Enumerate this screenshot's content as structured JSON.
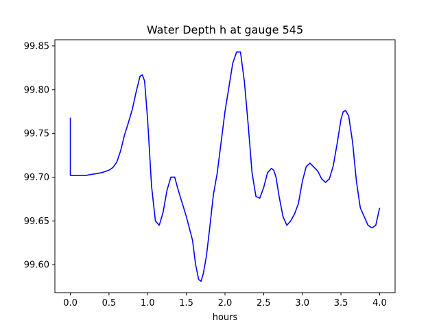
{
  "chart_data": {
    "type": "line",
    "title": "Water Depth h at gauge 545",
    "xlabel": "hours",
    "ylabel": "",
    "xlim": [
      -0.2,
      4.2
    ],
    "ylim": [
      99.568,
      99.857
    ],
    "xticks": [
      0.0,
      0.5,
      1.0,
      1.5,
      2.0,
      2.5,
      3.0,
      3.5,
      4.0
    ],
    "xtick_labels": [
      "0.0",
      "0.5",
      "1.0",
      "1.5",
      "2.0",
      "2.5",
      "3.0",
      "3.5",
      "4.0"
    ],
    "yticks": [
      99.6,
      99.65,
      99.7,
      99.75,
      99.8,
      99.85
    ],
    "ytick_labels": [
      "99.60",
      "99.65",
      "99.70",
      "99.75",
      "99.80",
      "99.85"
    ],
    "grid": false,
    "series": [
      {
        "color": "#0000ff",
        "x": [
          0.0,
          0.0,
          0.05,
          0.2,
          0.4,
          0.5,
          0.55,
          0.6,
          0.65,
          0.7,
          0.75,
          0.8,
          0.85,
          0.9,
          0.93,
          0.96,
          1.0,
          1.05,
          1.1,
          1.15,
          1.2,
          1.25,
          1.3,
          1.35,
          1.38,
          1.42,
          1.5,
          1.58,
          1.62,
          1.66,
          1.69,
          1.72,
          1.76,
          1.8,
          1.85,
          1.9,
          1.95,
          2.0,
          2.1,
          2.15,
          2.2,
          2.25,
          2.3,
          2.35,
          2.4,
          2.45,
          2.5,
          2.55,
          2.6,
          2.63,
          2.66,
          2.7,
          2.75,
          2.8,
          2.85,
          2.9,
          2.95,
          3.0,
          3.05,
          3.1,
          3.2,
          3.25,
          3.3,
          3.35,
          3.4,
          3.45,
          3.5,
          3.53,
          3.56,
          3.6,
          3.65,
          3.7,
          3.75,
          3.8,
          3.85,
          3.9,
          3.95,
          4.0
        ],
        "values": [
          99.768,
          99.702,
          99.702,
          99.702,
          99.705,
          99.708,
          99.711,
          99.717,
          99.73,
          99.748,
          99.762,
          99.777,
          99.797,
          99.815,
          99.817,
          99.81,
          99.765,
          99.69,
          99.65,
          99.645,
          99.66,
          99.685,
          99.7,
          99.7,
          99.69,
          99.678,
          99.655,
          99.628,
          99.6,
          99.583,
          99.581,
          99.59,
          99.61,
          99.64,
          99.68,
          99.705,
          99.74,
          99.775,
          99.83,
          99.843,
          99.843,
          99.81,
          99.76,
          99.705,
          99.678,
          99.676,
          99.688,
          99.705,
          99.71,
          99.708,
          99.7,
          99.678,
          99.655,
          99.645,
          99.65,
          99.658,
          99.67,
          99.695,
          99.712,
          99.716,
          99.707,
          99.698,
          99.694,
          99.698,
          99.713,
          99.738,
          99.766,
          99.775,
          99.776,
          99.77,
          99.74,
          99.695,
          99.665,
          99.655,
          99.645,
          99.642,
          99.645,
          99.665
        ]
      }
    ]
  }
}
